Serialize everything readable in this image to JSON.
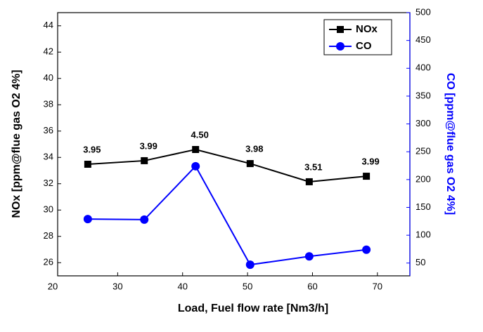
{
  "chart_data": {
    "type": "line",
    "x_label": "Load, Fuel flow rate [Nm3/h]",
    "y_label": "NOx [ppm@flue gas O2 4%]",
    "y2_label": "CO [ppm@flue gas O2 4%]",
    "x": [
      25.4,
      34.1,
      42.0,
      50.4,
      59.5,
      68.3
    ],
    "series": [
      {
        "name": "NOx",
        "color": "#000000",
        "marker": "square",
        "values": [
          33.48,
          33.75,
          34.6,
          33.53,
          32.15,
          32.57
        ]
      },
      {
        "name": "CO",
        "color": "#0000ff",
        "marker": "circle",
        "axis": "y2",
        "values": [
          129,
          128,
          224,
          47,
          62,
          74
        ]
      }
    ],
    "annotations": [
      "3.95",
      "3.99",
      "4.50",
      "3.98",
      "3.51",
      "3.99"
    ],
    "xlim": [
      20,
      75
    ],
    "xticks": [
      20,
      30,
      40,
      50,
      60,
      70
    ],
    "ylim": [
      25,
      45
    ],
    "yticks": [
      26,
      28,
      30,
      32,
      34,
      36,
      38,
      40,
      42,
      44
    ],
    "y2lim": [
      27,
      500
    ],
    "y2ticks": [
      50,
      100,
      150,
      200,
      250,
      300,
      350,
      400,
      450,
      500
    ],
    "legend": "top-right"
  }
}
